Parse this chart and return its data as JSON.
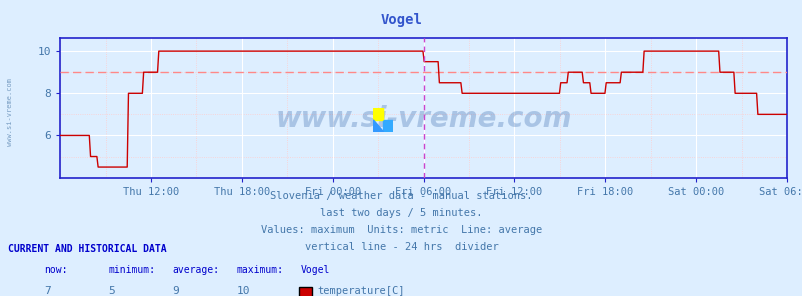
{
  "title": "Vogel",
  "bg_color": "#ddeeff",
  "plot_bg_color": "#ddeeff",
  "line_color": "#cc0000",
  "avg_line_color": "#ff8888",
  "divider_color": "#cc44cc",
  "axis_color": "#2222cc",
  "text_color": "#4477aa",
  "title_color": "#3355cc",
  "grid_major_color": "#ffffff",
  "grid_minor_color": "#ffcccc",
  "ylim": [
    4.0,
    10.6
  ],
  "yticks": [
    6,
    8,
    10
  ],
  "xlabel_ticks": [
    "Thu 12:00",
    "Thu 18:00",
    "Fri 00:00",
    "Fri 06:00",
    "Fri 12:00",
    "Fri 18:00",
    "Sat 00:00",
    "Sat 06:00"
  ],
  "tick_hours": [
    6,
    12,
    18,
    24,
    30,
    36,
    42,
    48
  ],
  "watermark_text": "www.si-vreme.com",
  "info_lines": [
    "Slovenia / weather data - manual stations.",
    "last two days / 5 minutes.",
    "Values: maximum  Units: metric  Line: average",
    "vertical line - 24 hrs  divider"
  ],
  "legend_label": "temperature[C]",
  "legend_color": "#cc0000",
  "stats_now": 7,
  "stats_min": 5,
  "stats_avg": 9,
  "stats_max": 10,
  "station": "Vogel",
  "avg_value": 9.0,
  "total_hours": 48
}
